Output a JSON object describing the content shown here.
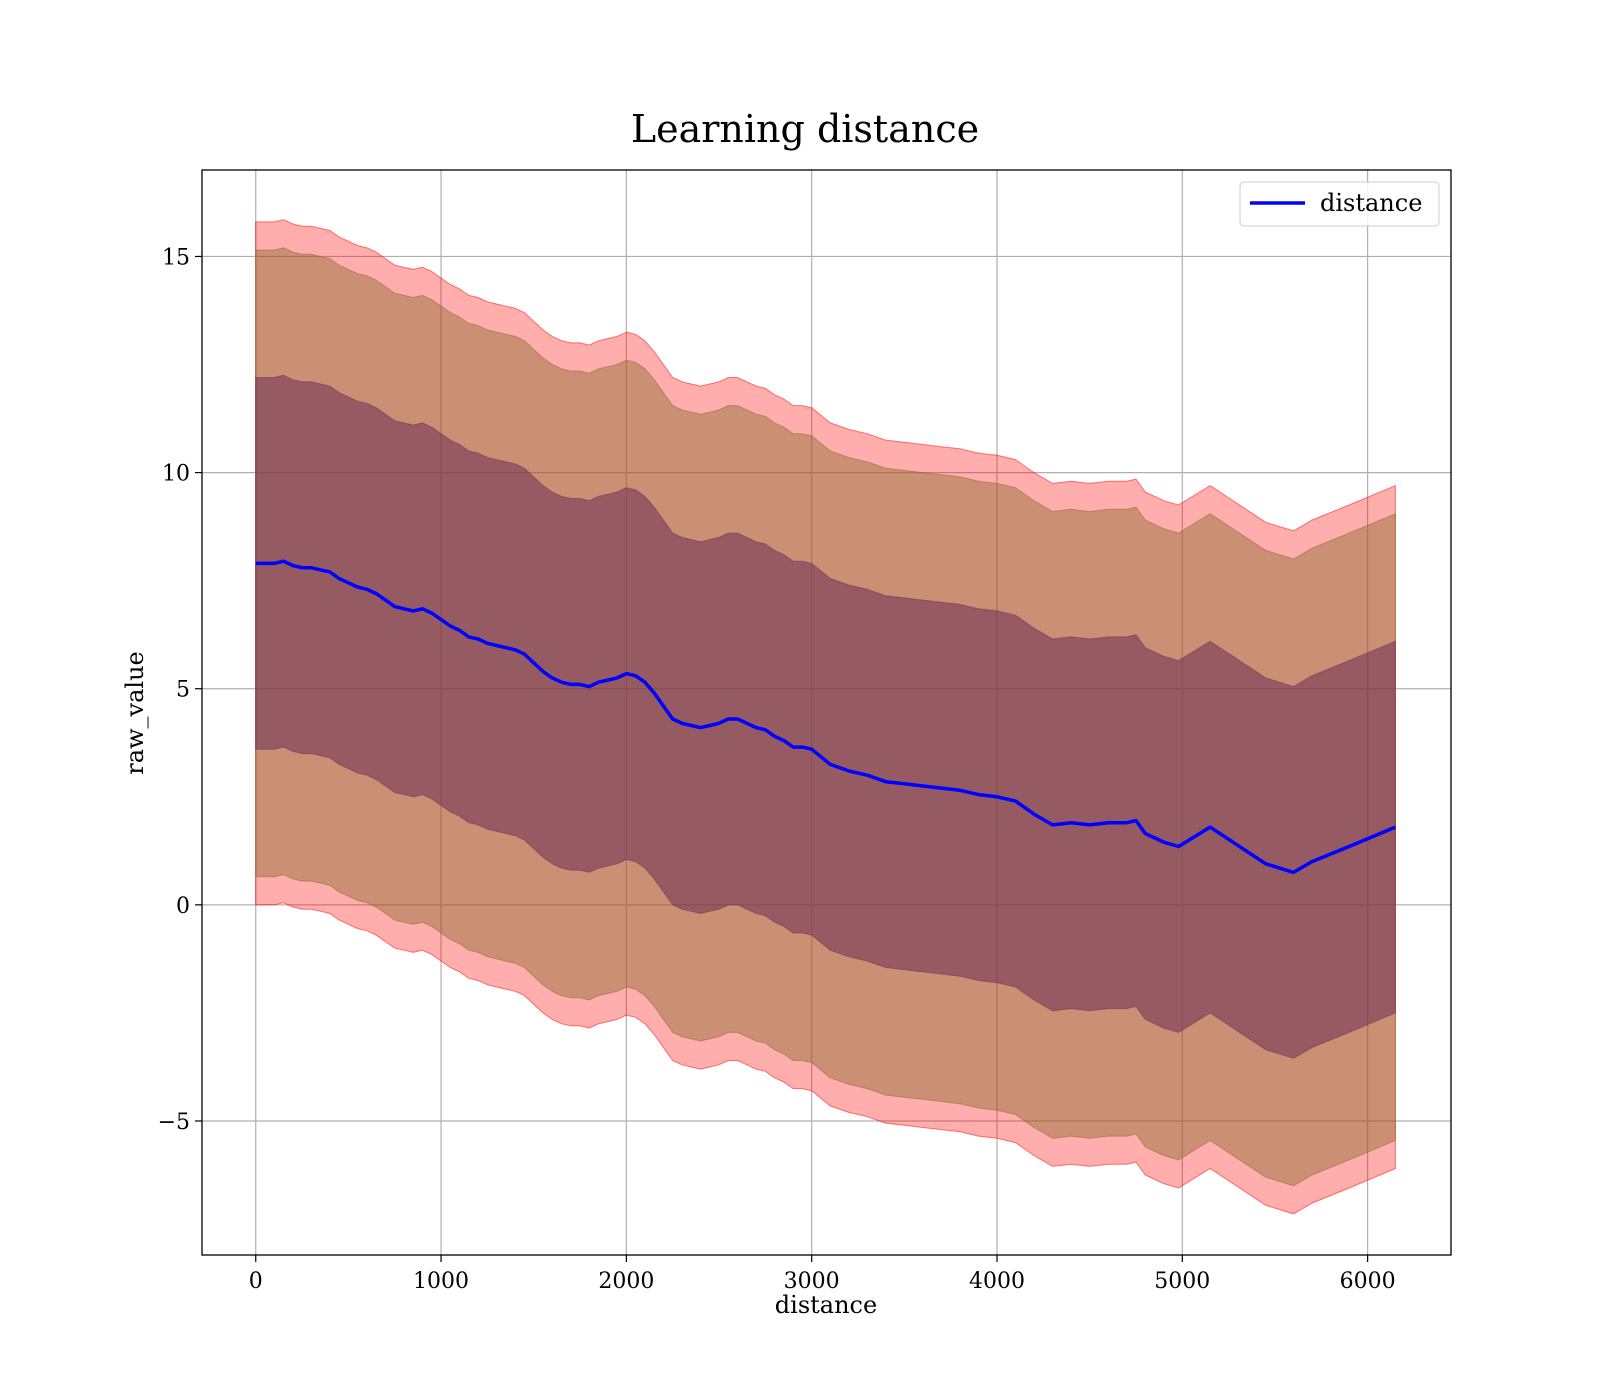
{
  "chart_data": {
    "type": "line",
    "title": "Learning distance",
    "xlabel": "distance",
    "ylabel": "raw_value",
    "xlim": [
      -290,
      6450
    ],
    "ylim": [
      -8.1,
      17.0
    ],
    "xticks": [
      0,
      1000,
      2000,
      3000,
      4000,
      5000,
      6000
    ],
    "yticks": [
      -5,
      0,
      5,
      10,
      15
    ],
    "ytick_labels": [
      "−5",
      "0",
      "5",
      "10",
      "15"
    ],
    "grid": true,
    "legend": {
      "position": "upper right",
      "entries": [
        "distance"
      ]
    },
    "colors": {
      "line": "#0000ff",
      "band_outer": "#ff0000",
      "band_middle": "#8b6a2e",
      "band_inner": "#6b2f55"
    },
    "series": [
      {
        "name": "distance",
        "x": [
          0,
          50,
          100,
          150,
          200,
          250,
          300,
          350,
          400,
          450,
          500,
          550,
          600,
          650,
          700,
          750,
          800,
          850,
          900,
          950,
          1000,
          1050,
          1100,
          1150,
          1200,
          1250,
          1300,
          1350,
          1400,
          1450,
          1500,
          1550,
          1600,
          1650,
          1700,
          1750,
          1800,
          1850,
          1900,
          1950,
          2000,
          2050,
          2100,
          2150,
          2200,
          2250,
          2300,
          2350,
          2400,
          2450,
          2500,
          2550,
          2600,
          2650,
          2700,
          2750,
          2800,
          2850,
          2900,
          2950,
          3000,
          3100,
          3200,
          3300,
          3400,
          3500,
          3600,
          3700,
          3800,
          3900,
          4000,
          4100,
          4200,
          4300,
          4400,
          4500,
          4600,
          4700,
          4750,
          4800,
          4900,
          4980,
          5150,
          5450,
          5600,
          5700,
          5900,
          6150
        ],
        "y": [
          7.9,
          7.9,
          7.9,
          7.95,
          7.85,
          7.8,
          7.8,
          7.75,
          7.7,
          7.55,
          7.45,
          7.35,
          7.3,
          7.2,
          7.05,
          6.9,
          6.85,
          6.8,
          6.85,
          6.75,
          6.6,
          6.45,
          6.35,
          6.2,
          6.15,
          6.05,
          6.0,
          5.95,
          5.9,
          5.8,
          5.6,
          5.4,
          5.25,
          5.15,
          5.1,
          5.1,
          5.05,
          5.15,
          5.2,
          5.25,
          5.35,
          5.3,
          5.15,
          4.9,
          4.6,
          4.3,
          4.2,
          4.15,
          4.1,
          4.15,
          4.2,
          4.3,
          4.3,
          4.2,
          4.1,
          4.05,
          3.9,
          3.8,
          3.65,
          3.65,
          3.6,
          3.25,
          3.1,
          3.0,
          2.85,
          2.8,
          2.75,
          2.7,
          2.65,
          2.55,
          2.5,
          2.4,
          2.1,
          1.85,
          1.9,
          1.85,
          1.9,
          1.9,
          1.95,
          1.65,
          1.45,
          1.35,
          1.8,
          0.95,
          0.75,
          1.0,
          1.35,
          1.8
        ]
      }
    ],
    "bands": [
      {
        "name": "outer",
        "half_width": 7.9
      },
      {
        "name": "middle",
        "half_width": 7.25
      },
      {
        "name": "inner",
        "half_width": 4.3
      }
    ]
  }
}
